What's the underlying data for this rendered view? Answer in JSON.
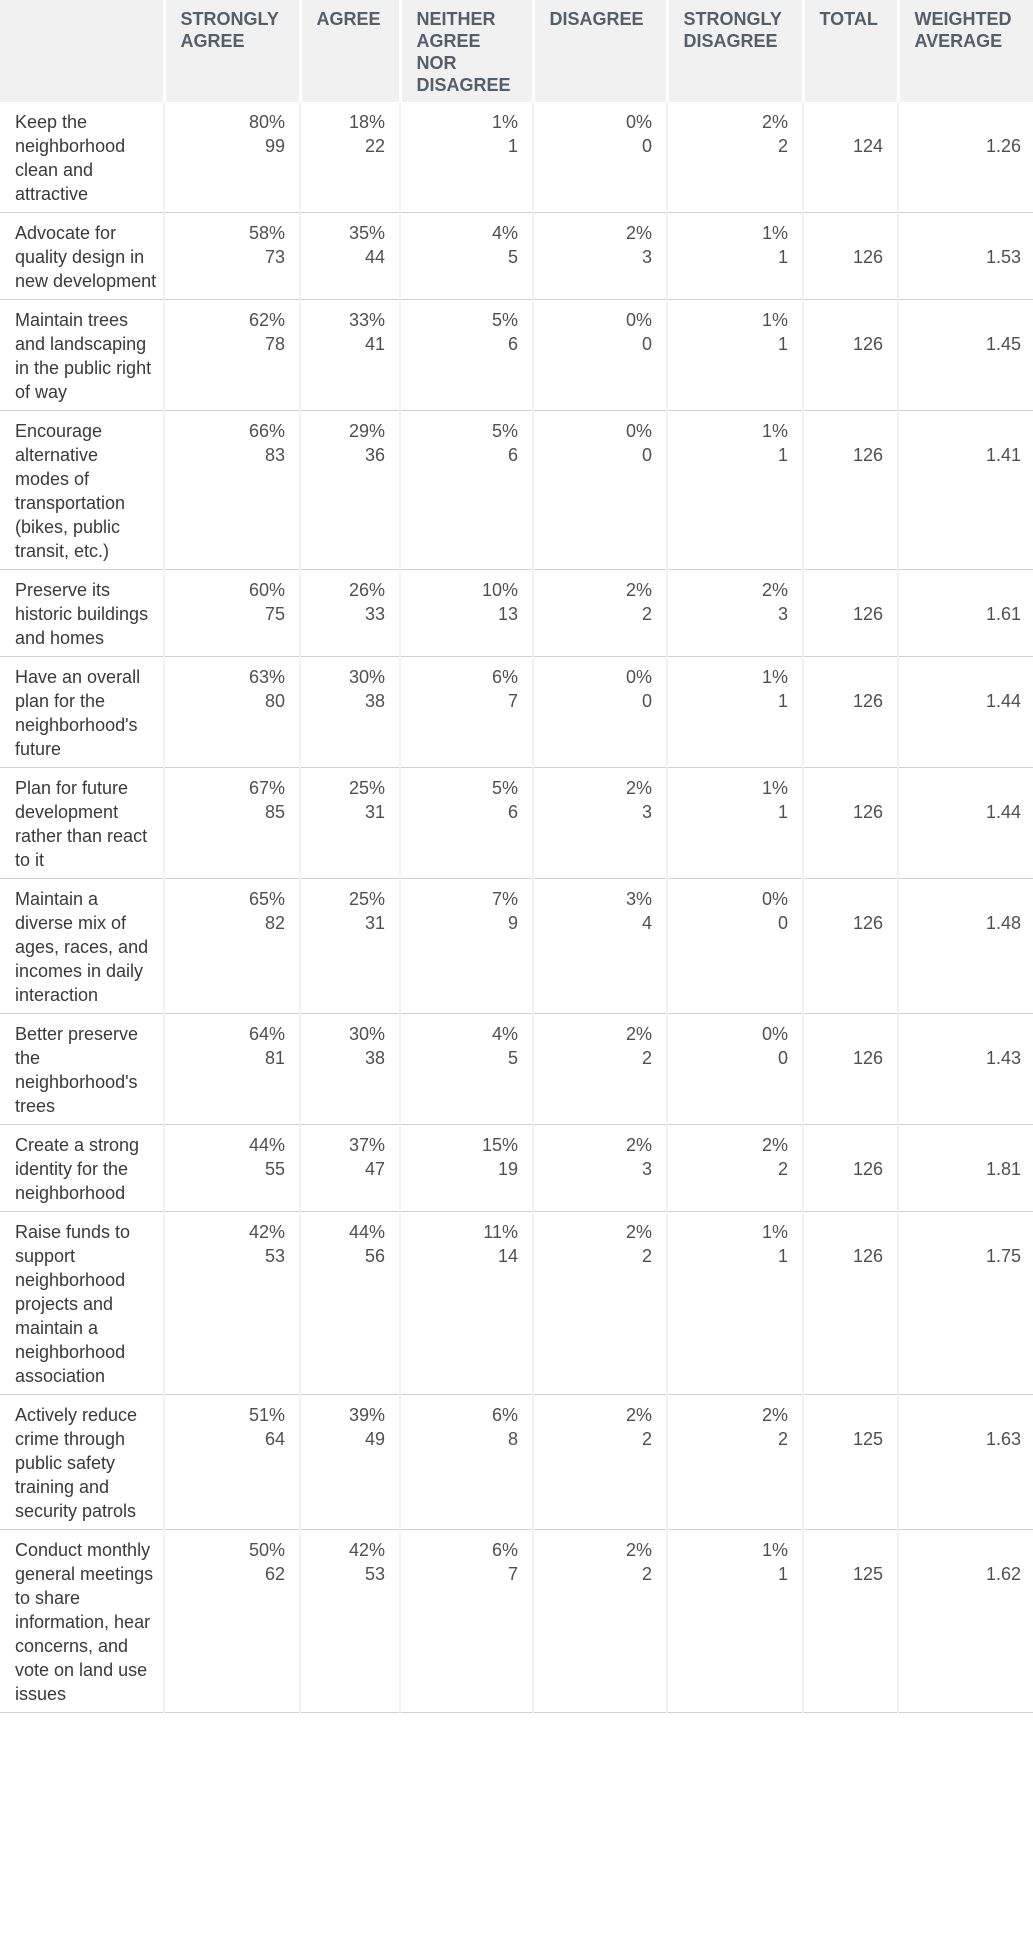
{
  "headers": [
    "",
    "STRONGLY AGREE",
    "AGREE",
    "NEITHER AGREE NOR DISAGREE",
    "DISAGREE",
    "STRONGLY DISAGREE",
    "TOTAL",
    "WEIGHTED AVERAGE"
  ],
  "rows": [
    {
      "label": "Keep the neighborhood clean and attractive",
      "cells": [
        {
          "pct": "80%",
          "n": "99"
        },
        {
          "pct": "18%",
          "n": "22"
        },
        {
          "pct": "1%",
          "n": "1"
        },
        {
          "pct": "0%",
          "n": "0"
        },
        {
          "pct": "2%",
          "n": "2"
        }
      ],
      "total": "124",
      "wavg": "1.26"
    },
    {
      "label": "Advocate for quality design in new development",
      "cells": [
        {
          "pct": "58%",
          "n": "73"
        },
        {
          "pct": "35%",
          "n": "44"
        },
        {
          "pct": "4%",
          "n": "5"
        },
        {
          "pct": "2%",
          "n": "3"
        },
        {
          "pct": "1%",
          "n": "1"
        }
      ],
      "total": "126",
      "wavg": "1.53"
    },
    {
      "label": "Maintain trees and landscaping in the public right of way",
      "cells": [
        {
          "pct": "62%",
          "n": "78"
        },
        {
          "pct": "33%",
          "n": "41"
        },
        {
          "pct": "5%",
          "n": "6"
        },
        {
          "pct": "0%",
          "n": "0"
        },
        {
          "pct": "1%",
          "n": "1"
        }
      ],
      "total": "126",
      "wavg": "1.45"
    },
    {
      "label": "Encourage alternative modes of transportation (bikes, public transit, etc.)",
      "cells": [
        {
          "pct": "66%",
          "n": "83"
        },
        {
          "pct": "29%",
          "n": "36"
        },
        {
          "pct": "5%",
          "n": "6"
        },
        {
          "pct": "0%",
          "n": "0"
        },
        {
          "pct": "1%",
          "n": "1"
        }
      ],
      "total": "126",
      "wavg": "1.41"
    },
    {
      "label": "Preserve its historic buildings and homes",
      "cells": [
        {
          "pct": "60%",
          "n": "75"
        },
        {
          "pct": "26%",
          "n": "33"
        },
        {
          "pct": "10%",
          "n": "13"
        },
        {
          "pct": "2%",
          "n": "2"
        },
        {
          "pct": "2%",
          "n": "3"
        }
      ],
      "total": "126",
      "wavg": "1.61"
    },
    {
      "label": "Have an overall plan for the neighborhood's future",
      "cells": [
        {
          "pct": "63%",
          "n": "80"
        },
        {
          "pct": "30%",
          "n": "38"
        },
        {
          "pct": "6%",
          "n": "7"
        },
        {
          "pct": "0%",
          "n": "0"
        },
        {
          "pct": "1%",
          "n": "1"
        }
      ],
      "total": "126",
      "wavg": "1.44"
    },
    {
      "label": "Plan for future development rather than react to it",
      "cells": [
        {
          "pct": "67%",
          "n": "85"
        },
        {
          "pct": "25%",
          "n": "31"
        },
        {
          "pct": "5%",
          "n": "6"
        },
        {
          "pct": "2%",
          "n": "3"
        },
        {
          "pct": "1%",
          "n": "1"
        }
      ],
      "total": "126",
      "wavg": "1.44"
    },
    {
      "label": "Maintain a diverse mix of ages, races, and incomes in daily interaction",
      "cells": [
        {
          "pct": "65%",
          "n": "82"
        },
        {
          "pct": "25%",
          "n": "31"
        },
        {
          "pct": "7%",
          "n": "9"
        },
        {
          "pct": "3%",
          "n": "4"
        },
        {
          "pct": "0%",
          "n": "0"
        }
      ],
      "total": "126",
      "wavg": "1.48"
    },
    {
      "label": "Better preserve the neighborhood's trees",
      "cells": [
        {
          "pct": "64%",
          "n": "81"
        },
        {
          "pct": "30%",
          "n": "38"
        },
        {
          "pct": "4%",
          "n": "5"
        },
        {
          "pct": "2%",
          "n": "2"
        },
        {
          "pct": "0%",
          "n": "0"
        }
      ],
      "total": "126",
      "wavg": "1.43"
    },
    {
      "label": "Create a strong identity for the neighborhood",
      "cells": [
        {
          "pct": "44%",
          "n": "55"
        },
        {
          "pct": "37%",
          "n": "47"
        },
        {
          "pct": "15%",
          "n": "19"
        },
        {
          "pct": "2%",
          "n": "3"
        },
        {
          "pct": "2%",
          "n": "2"
        }
      ],
      "total": "126",
      "wavg": "1.81"
    },
    {
      "label": "Raise funds to support neighborhood projects and maintain a neighborhood association",
      "cells": [
        {
          "pct": "42%",
          "n": "53"
        },
        {
          "pct": "44%",
          "n": "56"
        },
        {
          "pct": "11%",
          "n": "14"
        },
        {
          "pct": "2%",
          "n": "2"
        },
        {
          "pct": "1%",
          "n": "1"
        }
      ],
      "total": "126",
      "wavg": "1.75"
    },
    {
      "label": "Actively reduce crime through public safety training and security patrols",
      "cells": [
        {
          "pct": "51%",
          "n": "64"
        },
        {
          "pct": "39%",
          "n": "49"
        },
        {
          "pct": "6%",
          "n": "8"
        },
        {
          "pct": "2%",
          "n": "2"
        },
        {
          "pct": "2%",
          "n": "2"
        }
      ],
      "total": "125",
      "wavg": "1.63"
    },
    {
      "label": "Conduct monthly general meetings to share information, hear concerns, and vote on land use issues",
      "cells": [
        {
          "pct": "50%",
          "n": "62"
        },
        {
          "pct": "42%",
          "n": "53"
        },
        {
          "pct": "6%",
          "n": "7"
        },
        {
          "pct": "2%",
          "n": "2"
        },
        {
          "pct": "1%",
          "n": "1"
        }
      ],
      "total": "125",
      "wavg": "1.62"
    }
  ]
}
